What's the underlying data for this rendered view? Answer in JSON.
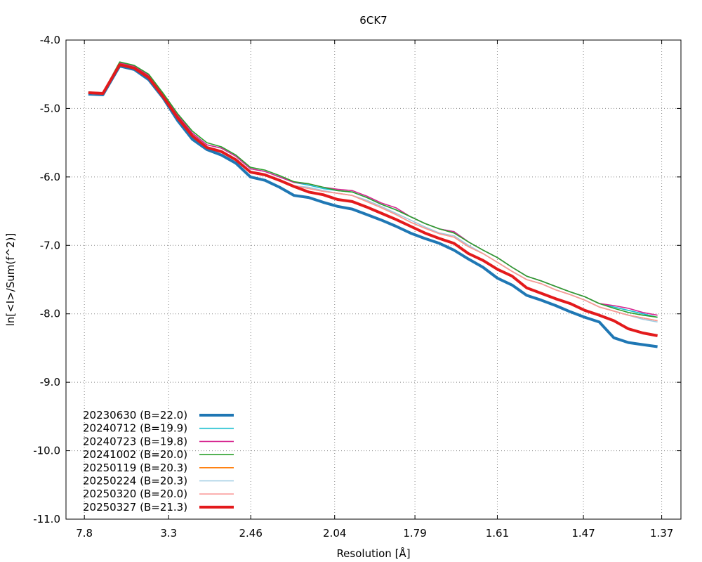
{
  "chart_data": {
    "type": "line",
    "title": "6CK7",
    "xlabel": "Resolution [Å]",
    "ylabel": "ln[<I>/Sum(f^2)]",
    "x_axis_scale": "inverse-square (1/d^2)",
    "x_ticks": [
      "7.8",
      "3.3",
      "2.46",
      "2.04",
      "1.79",
      "1.61",
      "1.47",
      "1.37"
    ],
    "y_ticks": [
      "-4.0",
      "-5.0",
      "-6.0",
      "-7.0",
      "-8.0",
      "-9.0",
      "-10.0",
      "-11.0"
    ],
    "ylim": [
      -11.0,
      -4.0
    ],
    "grid": true,
    "legend_position": "bottom-left",
    "x": [
      0.02,
      0.033,
      0.048,
      0.061,
      0.074,
      0.087,
      0.1,
      0.113,
      0.126,
      0.139,
      0.152,
      0.165,
      0.178,
      0.191,
      0.204,
      0.217,
      0.23,
      0.243,
      0.256,
      0.269,
      0.282,
      0.295,
      0.308,
      0.321,
      0.334,
      0.347,
      0.36,
      0.373,
      0.386,
      0.399,
      0.412,
      0.425,
      0.438,
      0.451,
      0.464,
      0.477,
      0.49,
      0.503,
      0.516,
      0.529
    ],
    "series": [
      {
        "name": "20230630 (B=22.0)",
        "color": "#1f77b4",
        "values": [
          -4.79,
          -4.8,
          -4.38,
          -4.43,
          -4.58,
          -4.85,
          -5.18,
          -5.45,
          -5.6,
          -5.68,
          -5.8,
          -6.0,
          -6.05,
          -6.15,
          -6.27,
          -6.3,
          -6.37,
          -6.43,
          -6.47,
          -6.55,
          -6.63,
          -6.72,
          -6.82,
          -6.9,
          -6.97,
          -7.07,
          -7.2,
          -7.32,
          -7.48,
          -7.58,
          -7.73,
          -7.8,
          -7.88,
          -7.97,
          -8.05,
          -8.12,
          -8.35,
          -8.42,
          -8.45,
          -8.48
        ]
      },
      {
        "name": "20240712 (B=19.9)",
        "color": "#17becf",
        "values": [
          -4.77,
          -4.78,
          -4.33,
          -4.38,
          -4.52,
          -4.8,
          -5.1,
          -5.36,
          -5.53,
          -5.58,
          -5.7,
          -5.88,
          -5.92,
          -6.0,
          -6.08,
          -6.12,
          -6.17,
          -6.2,
          -6.22,
          -6.3,
          -6.4,
          -6.48,
          -6.58,
          -6.68,
          -6.76,
          -6.8,
          -6.95,
          -7.07,
          -7.18,
          -7.32,
          -7.45,
          -7.52,
          -7.6,
          -7.68,
          -7.75,
          -7.85,
          -7.9,
          -7.95,
          -8.0,
          -8.05
        ]
      },
      {
        "name": "20240723 (B=19.8)",
        "color": "#d62790",
        "values": [
          -4.77,
          -4.78,
          -4.33,
          -4.38,
          -4.52,
          -4.8,
          -5.1,
          -5.36,
          -5.53,
          -5.58,
          -5.7,
          -5.88,
          -5.92,
          -6.0,
          -6.08,
          -6.1,
          -6.15,
          -6.18,
          -6.2,
          -6.28,
          -6.38,
          -6.45,
          -6.58,
          -6.68,
          -6.76,
          -6.8,
          -6.95,
          -7.07,
          -7.18,
          -7.32,
          -7.45,
          -7.52,
          -7.6,
          -7.68,
          -7.75,
          -7.85,
          -7.88,
          -7.92,
          -7.98,
          -8.02
        ]
      },
      {
        "name": "20241002 (B=20.0)",
        "color": "#2ca02c",
        "values": [
          -4.76,
          -4.77,
          -4.32,
          -4.37,
          -4.5,
          -4.78,
          -5.08,
          -5.33,
          -5.5,
          -5.56,
          -5.68,
          -5.86,
          -5.9,
          -5.98,
          -6.07,
          -6.1,
          -6.15,
          -6.2,
          -6.22,
          -6.3,
          -6.4,
          -6.48,
          -6.58,
          -6.68,
          -6.76,
          -6.82,
          -6.95,
          -7.07,
          -7.18,
          -7.32,
          -7.45,
          -7.52,
          -7.6,
          -7.68,
          -7.75,
          -7.85,
          -7.92,
          -7.98,
          -8.02,
          -8.05
        ]
      },
      {
        "name": "20250119 (B=20.3)",
        "color": "#ff7f0e",
        "values": [
          -4.78,
          -4.79,
          -4.35,
          -4.4,
          -4.54,
          -4.82,
          -5.13,
          -5.39,
          -5.56,
          -5.62,
          -5.74,
          -5.92,
          -5.96,
          -6.04,
          -6.13,
          -6.17,
          -6.21,
          -6.24,
          -6.27,
          -6.36,
          -6.45,
          -6.55,
          -6.66,
          -6.75,
          -6.83,
          -6.88,
          -7.02,
          -7.12,
          -7.25,
          -7.38,
          -7.5,
          -7.56,
          -7.65,
          -7.72,
          -7.8,
          -7.9,
          -7.96,
          -8.02,
          -8.06,
          -8.1
        ]
      },
      {
        "name": "20250224 (B=20.3)",
        "color": "#9ecae1",
        "values": [
          -4.78,
          -4.79,
          -4.35,
          -4.4,
          -4.54,
          -4.82,
          -5.13,
          -5.39,
          -5.56,
          -5.62,
          -5.74,
          -5.92,
          -5.96,
          -6.04,
          -6.13,
          -6.15,
          -6.2,
          -6.24,
          -6.27,
          -6.34,
          -6.43,
          -6.53,
          -6.63,
          -6.73,
          -6.82,
          -6.86,
          -7.0,
          -7.12,
          -7.25,
          -7.38,
          -7.5,
          -7.56,
          -7.65,
          -7.72,
          -7.8,
          -7.9,
          -7.96,
          -8.02,
          -8.08,
          -8.12
        ]
      },
      {
        "name": "20250320 (B=20.0)",
        "color": "#fa9896",
        "values": [
          -4.78,
          -4.79,
          -4.35,
          -4.4,
          -4.54,
          -4.82,
          -5.13,
          -5.39,
          -5.56,
          -5.62,
          -5.74,
          -5.92,
          -5.96,
          -6.04,
          -6.13,
          -6.17,
          -6.21,
          -6.24,
          -6.27,
          -6.36,
          -6.45,
          -6.55,
          -6.66,
          -6.75,
          -6.83,
          -6.88,
          -7.02,
          -7.12,
          -7.25,
          -7.38,
          -7.5,
          -7.56,
          -7.65,
          -7.72,
          -7.8,
          -7.9,
          -7.96,
          -8.02,
          -8.06,
          -8.1
        ]
      },
      {
        "name": "20250327 (B=21.3)",
        "color": "#e31a1c",
        "values": [
          -4.77,
          -4.78,
          -4.36,
          -4.41,
          -4.55,
          -4.83,
          -5.14,
          -5.4,
          -5.57,
          -5.63,
          -5.75,
          -5.93,
          -5.97,
          -6.05,
          -6.14,
          -6.22,
          -6.26,
          -6.33,
          -6.36,
          -6.44,
          -6.53,
          -6.62,
          -6.72,
          -6.82,
          -6.9,
          -6.97,
          -7.12,
          -7.22,
          -7.35,
          -7.45,
          -7.62,
          -7.7,
          -7.78,
          -7.85,
          -7.95,
          -8.02,
          -8.1,
          -8.22,
          -8.28,
          -8.32
        ]
      }
    ]
  }
}
